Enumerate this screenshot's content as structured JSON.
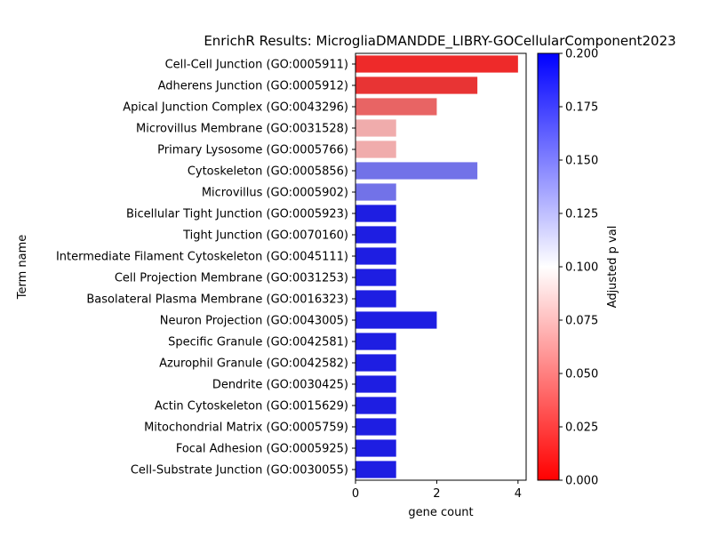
{
  "chart_data": {
    "type": "bar",
    "orientation": "horizontal",
    "title": "EnrichR Results: MicrogliaDMANDDE_LIBRY-GOCellularComponent2023",
    "xlabel": "gene count",
    "ylabel": "Term name",
    "xlim": [
      0,
      4.2
    ],
    "xticks": [
      0,
      2,
      4
    ],
    "grid": false,
    "colorbar": {
      "label": "Adjusted p val",
      "range": [
        0.0,
        0.2
      ],
      "ticks": [
        0.0,
        0.025,
        0.05,
        0.075,
        0.1,
        0.125,
        0.15,
        0.175,
        0.2
      ],
      "tick_labels": [
        "0.000",
        "0.025",
        "0.050",
        "0.075",
        "0.100",
        "0.125",
        "0.150",
        "0.175",
        "0.200"
      ],
      "colormap": [
        "#ff0000",
        "#ffffff",
        "#0000ff"
      ]
    },
    "categories": [
      "Cell-Cell Junction (GO:0005911)",
      "Adherens Junction (GO:0005912)",
      "Apical Junction Complex (GO:0043296)",
      "Microvillus Membrane (GO:0031528)",
      "Primary Lysosome (GO:0005766)",
      "Cytoskeleton (GO:0005856)",
      "Microvillus (GO:0005902)",
      "Bicellular Tight Junction (GO:0005923)",
      "Tight Junction (GO:0070160)",
      "Intermediate Filament Cytoskeleton (GO:0045111)",
      "Cell Projection Membrane (GO:0031253)",
      "Basolateral Plasma Membrane (GO:0016323)",
      "Neuron Projection (GO:0043005)",
      "Specific Granule (GO:0042581)",
      "Azurophil Granule (GO:0042582)",
      "Dendrite (GO:0030425)",
      "Actin Cytoskeleton (GO:0015629)",
      "Mitochondrial Matrix (GO:0005759)",
      "Focal Adhesion (GO:0005925)",
      "Cell-Substrate Junction (GO:0030055)"
    ],
    "values": [
      4,
      3,
      2,
      1,
      1,
      3,
      1,
      1,
      1,
      1,
      1,
      1,
      2,
      1,
      1,
      1,
      1,
      1,
      1,
      1
    ],
    "bar_colors": [
      "#ee2a2a",
      "#e83434",
      "#e86464",
      "#f0acac",
      "#f0acac",
      "#7272e8",
      "#7272e8",
      "#1e1ee2",
      "#1e1ee2",
      "#1e1ee2",
      "#1e1ee2",
      "#1e1ee2",
      "#1e1ee2",
      "#1e1ee2",
      "#1e1ee2",
      "#1e1ee2",
      "#1e1ee2",
      "#1e1ee2",
      "#1e1ee2",
      "#1e1ee2"
    ]
  }
}
